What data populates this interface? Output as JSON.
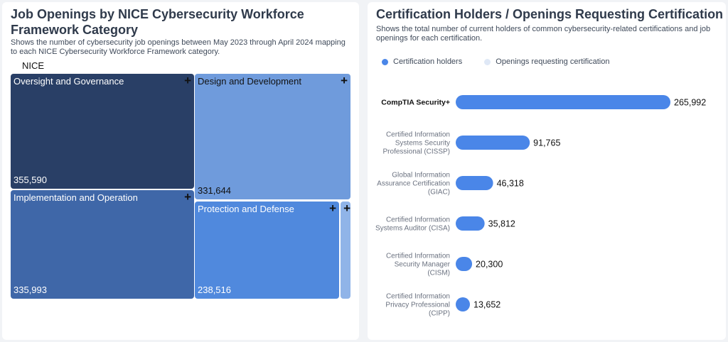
{
  "chart_data": [
    {
      "type": "treemap",
      "title": "Job Openings by NICE Cybersecurity Workforce Framework Category",
      "subtitle": "Shows the number of cybersecurity job openings between May 2023 through April 2024 mapping to each NICE Cybersecurity Workforce Framework category.",
      "root": "NICE",
      "categories": [
        "Oversight and Governance",
        "Design and Development",
        "Implementation and Operation",
        "Protection and Defense",
        ""
      ],
      "values": [
        355590,
        331644,
        335993,
        238516,
        null
      ],
      "value_labels": [
        "355,590",
        "331,644",
        "335,993",
        "238,516",
        ""
      ],
      "colors": [
        "#293f66",
        "#6f9bdc",
        "#3f67a8",
        "#5089dd",
        "#90b4e8"
      ],
      "expand_icon": "+"
    },
    {
      "type": "bar",
      "orientation": "horizontal",
      "title": "Certification Holders / Openings Requesting Certification",
      "subtitle": "Shows the total number of current holders of common cybersecurity-related certifications and job openings for each certification.",
      "legend": {
        "position": "top-left",
        "entries": [
          {
            "name": "Certification holders",
            "color": "#4a86e8"
          },
          {
            "name": "Openings requesting certification",
            "color": "#dfe8f6"
          }
        ]
      },
      "categories": [
        "CompTIA Security+",
        "Certified Information Systems Security Professional (CISSP)",
        "Global Information Assurance Certification (GIAC)",
        "Certified Information Systems Auditor (CISA)",
        "Certified Information Security Manager (CISM)",
        "Certified Information Privacy Professional (CIPP)"
      ],
      "category_lines": [
        [
          "CompTIA Security+"
        ],
        [
          "Certified Information",
          "Systems Security",
          "Professional (CISSP)"
        ],
        [
          "Global Information",
          "Assurance Certification",
          "(GIAC)"
        ],
        [
          "Certified Information",
          "Systems Auditor (CISA)"
        ],
        [
          "Certified Information",
          "Security Manager",
          "(CISM)"
        ],
        [
          "Certified Information",
          "Privacy Professional",
          "(CIPP)"
        ]
      ],
      "series": [
        {
          "name": "Certification holders",
          "values": [
            265992,
            91765,
            46318,
            35812,
            20300,
            13652
          ]
        }
      ],
      "value_labels": [
        "265,992",
        "91,765",
        "46,318",
        "35,812",
        "20,300",
        "13,652"
      ],
      "highlighted_category": "CompTIA Security+",
      "xlim": [
        0,
        265992
      ],
      "grid": false
    }
  ]
}
